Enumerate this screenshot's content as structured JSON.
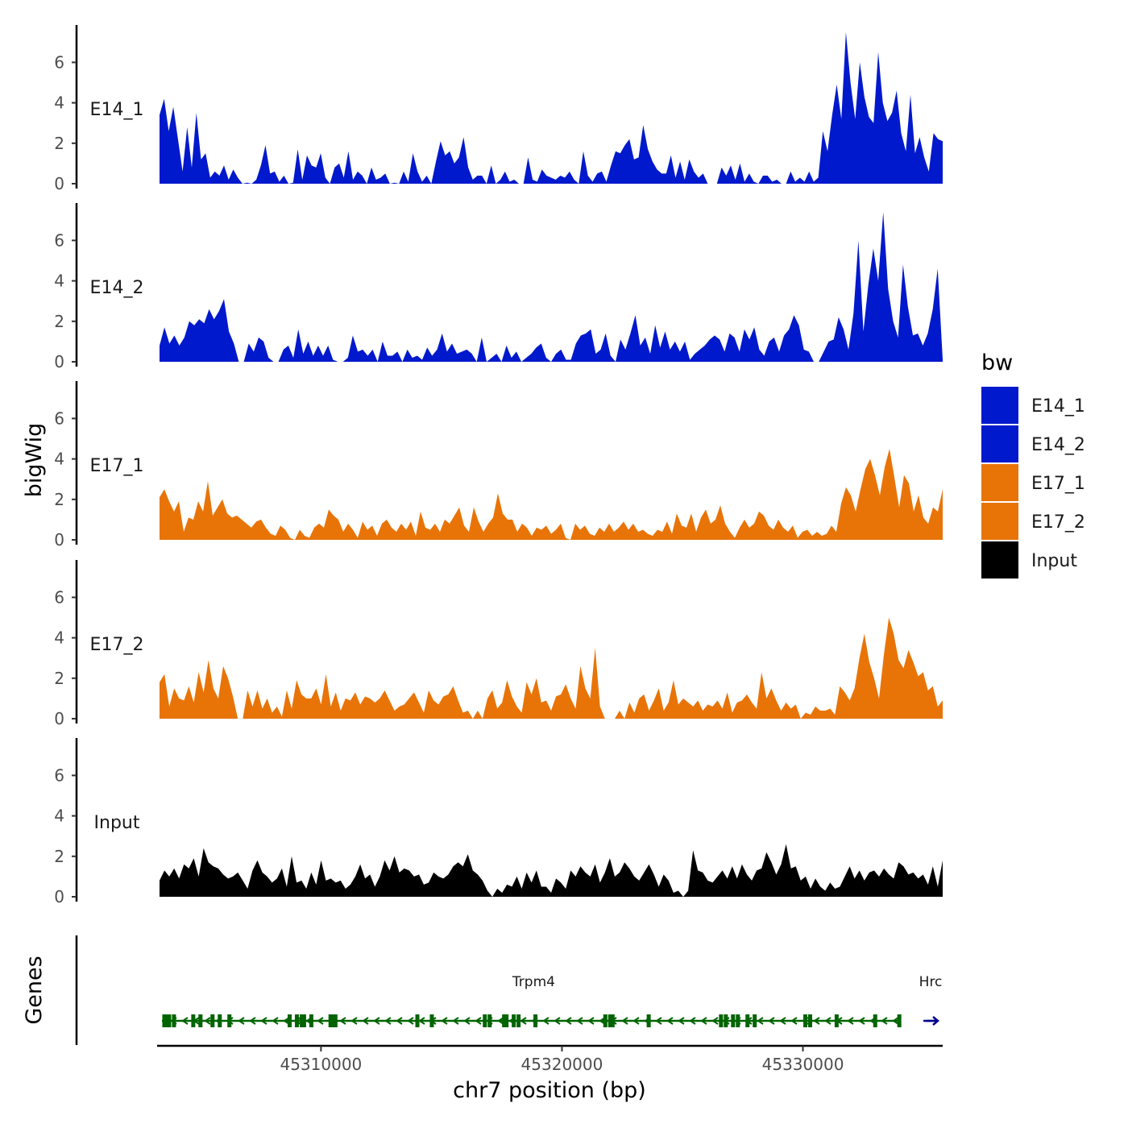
{
  "chart_data": {
    "type": "area",
    "title": "",
    "ylabel": "bigWig",
    "xlabel": "chr7 position (bp)",
    "genes_label": "Genes",
    "chromosome": "chr7",
    "xlim": [
      45303200,
      45335800
    ],
    "x_ticks": [
      45310000,
      45320000,
      45330000
    ],
    "x_tick_labels": [
      "45310000",
      "45320000",
      "45330000"
    ],
    "ylim": [
      0,
      7.5
    ],
    "y_ticks": [
      0,
      2,
      4,
      6
    ],
    "y_tick_labels": [
      "0",
      "2",
      "4",
      "6"
    ],
    "legend": {
      "title": "bw",
      "entries": [
        {
          "label": "E14_1",
          "color": "#0019CC"
        },
        {
          "label": "E14_2",
          "color": "#0019CC"
        },
        {
          "label": "E17_1",
          "color": "#E87408"
        },
        {
          "label": "E17_2",
          "color": "#E87408"
        },
        {
          "label": "Input",
          "color": "#000000"
        }
      ]
    },
    "tracks": [
      {
        "name": "E14_1",
        "color": "#0019CC",
        "x_start": 45303300,
        "x_end": 45335800,
        "values": [
          3.4,
          4.2,
          2.6,
          3.8,
          2.2,
          0.6,
          2.8,
          0.8,
          3.5,
          1.2,
          1.5,
          0.3,
          0.6,
          0.4,
          0.9,
          0.2,
          0.7,
          0.3,
          0,
          0.05,
          0,
          0.2,
          0.9,
          1.9,
          0.5,
          0.6,
          0.1,
          0.4,
          0,
          0.05,
          1.7,
          0.2,
          1.4,
          0.9,
          0.8,
          1.5,
          0.3,
          0,
          0.8,
          1.0,
          0.3,
          1.6,
          0.2,
          0.6,
          0.4,
          0,
          0.8,
          0.2,
          0.3,
          0.5,
          0,
          0.05,
          0,
          0.6,
          0.1,
          1.5,
          0.6,
          0.1,
          0.4,
          0,
          1.1,
          2.1,
          1.4,
          1.6,
          1.0,
          1.3,
          2.3,
          0.8,
          0.2,
          0.4,
          0.4,
          0,
          0.9,
          0,
          0.2,
          0.6,
          0.1,
          0.2,
          0,
          0,
          1.3,
          0.2,
          0.1,
          0.7,
          0.4,
          0.3,
          0.2,
          0.4,
          0.3,
          0.6,
          0.2,
          0,
          1.6,
          0.4,
          0.1,
          0.5,
          0.6,
          0.1,
          0.9,
          1.6,
          1.5,
          1.9,
          2.2,
          1.2,
          1.3,
          2.9,
          1.7,
          1.1,
          0.7,
          0.5,
          0.5,
          1.4,
          0.3,
          1.1,
          0.2,
          1.2,
          0.6,
          0.3,
          0.5,
          0,
          0,
          0,
          0.8,
          0.4,
          0.9,
          0.2,
          1.0,
          0.1,
          0.5,
          0.1,
          0,
          0.4,
          0.4,
          0.1,
          0.2,
          0,
          0,
          0.6,
          0.1,
          0.3,
          0.1,
          0.6,
          0.1,
          0.3,
          2.6,
          1.6,
          3.4,
          4.9,
          3.2,
          7.5,
          5.0,
          3.2,
          6.0,
          4.3,
          3.3,
          3.0,
          6.5,
          4.0,
          3.1,
          3.5,
          4.6,
          2.5,
          1.6,
          4.4,
          1.5,
          2.3,
          1.3,
          0.6,
          2.5,
          2.2,
          2.1
        ]
      },
      {
        "name": "E14_2",
        "color": "#0019CC",
        "x_start": 45303300,
        "x_end": 45335800,
        "values": [
          0.8,
          1.7,
          0.9,
          1.3,
          0.8,
          1.2,
          2.0,
          1.8,
          2.1,
          1.9,
          2.6,
          2.1,
          2.5,
          3.1,
          1.5,
          0.9,
          0,
          0,
          0.9,
          0.5,
          1.2,
          1.0,
          0.2,
          0,
          0,
          0.6,
          0.8,
          0.2,
          1.6,
          0.4,
          1.0,
          0.3,
          0.8,
          0.3,
          0.8,
          0.1,
          0,
          0,
          0.2,
          1.3,
          0.5,
          0.6,
          0.3,
          0.6,
          0,
          1.0,
          0.3,
          0.3,
          0.5,
          0,
          0.6,
          0.2,
          0.3,
          0.1,
          0.7,
          0.3,
          0.6,
          1.4,
          0.5,
          0.9,
          0.4,
          0.5,
          0.6,
          0.4,
          0,
          1.2,
          0,
          0.2,
          0.4,
          0,
          0.8,
          0.2,
          0.5,
          0,
          0.2,
          0.4,
          0.7,
          0.9,
          0.2,
          0,
          0.4,
          0.6,
          0.1,
          0.1,
          0.9,
          1.3,
          1.4,
          1.6,
          0.4,
          0.6,
          1.4,
          0.3,
          0,
          1.1,
          0.6,
          1.4,
          2.3,
          0.8,
          1.2,
          0.4,
          1.8,
          0.7,
          1.5,
          0.6,
          1.0,
          0.5,
          1.0,
          0.1,
          0.4,
          0.6,
          0.8,
          1.1,
          1.3,
          1.1,
          0.5,
          1.4,
          1.2,
          0.5,
          1.6,
          1.1,
          1.7,
          0.6,
          0.3,
          1.0,
          1.2,
          0.5,
          1.3,
          1.6,
          2.3,
          1.8,
          0.6,
          0.5,
          0,
          0,
          0.5,
          1.0,
          1.1,
          2.2,
          1.6,
          0.6,
          2.4,
          6.0,
          1.5,
          3.8,
          5.6,
          4.0,
          7.4,
          3.6,
          2.0,
          1.2,
          4.8,
          2.7,
          1.3,
          1.4,
          0.8,
          1.4,
          2.6,
          4.6,
          0.1
        ]
      },
      {
        "name": "E17_1",
        "color": "#E87408",
        "x_start": 45303300,
        "x_end": 45335800,
        "values": [
          2.1,
          2.5,
          1.9,
          1.4,
          1.9,
          0.4,
          1.1,
          1.0,
          1.9,
          1.4,
          2.9,
          1.2,
          1.6,
          2.0,
          1.3,
          1.1,
          1.2,
          1.0,
          0.8,
          0.6,
          0.9,
          1.0,
          0.6,
          0.3,
          0.2,
          0.7,
          0.5,
          0.1,
          0,
          0.5,
          0.2,
          0.1,
          0.6,
          0.8,
          0.6,
          1.5,
          1.2,
          1.0,
          0.4,
          0.8,
          0.5,
          0.1,
          0.9,
          0.5,
          0.7,
          0.2,
          0.8,
          1.0,
          0.6,
          0.4,
          0.8,
          0.5,
          0.9,
          0.2,
          1.4,
          0.6,
          0.5,
          0.8,
          0.4,
          1.0,
          0.8,
          1.2,
          1.6,
          0.7,
          0.4,
          1.6,
          0.9,
          0.4,
          0.8,
          1.1,
          2.3,
          1.3,
          1.0,
          1.0,
          0.4,
          0.8,
          0.6,
          0.2,
          0.6,
          0.5,
          0.7,
          0.3,
          0.5,
          0.8,
          0.1,
          0,
          0.8,
          0.5,
          0.7,
          0.3,
          0.2,
          0.6,
          0.4,
          0.8,
          0.4,
          0.6,
          0.9,
          0.5,
          0.8,
          0.4,
          0.5,
          0.3,
          0.2,
          0.5,
          0.4,
          0.9,
          0.3,
          1.3,
          0.7,
          0.6,
          1.3,
          0.4,
          1.1,
          1.5,
          0.8,
          1.0,
          1.7,
          0.8,
          0.4,
          0.1,
          0.6,
          1.0,
          0.6,
          0.8,
          1.4,
          1.2,
          0.7,
          0.5,
          1.0,
          0.6,
          0.4,
          0.7,
          0.1,
          0.4,
          0.5,
          0.2,
          0.4,
          0.2,
          0.3,
          0.7,
          0.4,
          1.8,
          2.6,
          2.2,
          1.4,
          2.5,
          3.5,
          4.0,
          3.2,
          2.2,
          3.6,
          4.5,
          3.1,
          1.6,
          3.2,
          2.8,
          1.4,
          2.2,
          1.1,
          0.8,
          1.6,
          1.4,
          2.5
        ]
      },
      {
        "name": "E17_2",
        "color": "#E87408",
        "x_start": 45303300,
        "x_end": 45335800,
        "values": [
          1.8,
          2.2,
          0.6,
          1.5,
          1.0,
          0.9,
          1.6,
          0.8,
          2.3,
          1.3,
          2.9,
          1.5,
          1.0,
          2.6,
          2.0,
          1.1,
          0,
          0,
          1.4,
          0.6,
          1.4,
          0.5,
          1.0,
          0.3,
          0.6,
          0.1,
          1.4,
          0.5,
          1.9,
          1.2,
          1.0,
          1.0,
          1.5,
          0.7,
          2.2,
          0.6,
          1.3,
          0.4,
          1.0,
          0.9,
          1.3,
          0.7,
          1.1,
          1.0,
          0.8,
          1.0,
          1.4,
          0.9,
          0.4,
          0.6,
          0.7,
          1.0,
          1.3,
          0.8,
          0.3,
          1.4,
          0.9,
          0.7,
          1.1,
          1.2,
          1.6,
          0.9,
          0.3,
          0.4,
          0,
          0.4,
          0,
          1.0,
          1.4,
          0.5,
          0.8,
          1.9,
          1.1,
          0.6,
          0.3,
          1.8,
          1.2,
          2.0,
          0.8,
          0.9,
          0.4,
          1.1,
          1.2,
          1.7,
          1.0,
          0.5,
          2.6,
          1.5,
          1.0,
          3.5,
          0.6,
          0,
          0,
          0,
          0.4,
          0,
          0.8,
          0.3,
          1.0,
          1.2,
          0.4,
          0.9,
          1.5,
          0.4,
          0.8,
          1.9,
          0.7,
          1.0,
          0.8,
          0.6,
          0.9,
          0.4,
          0.7,
          0.6,
          0.9,
          0.5,
          1.3,
          0.3,
          0.8,
          0.9,
          1.2,
          0.8,
          0.5,
          2.3,
          1.0,
          1.5,
          0.9,
          0.4,
          0.8,
          0.5,
          0.7,
          0,
          0.3,
          0.2,
          0.6,
          0.4,
          0.4,
          0.5,
          0.2,
          1.6,
          1.3,
          0.9,
          1.5,
          3.0,
          4.2,
          2.8,
          2.0,
          1.0,
          3.2,
          5.0,
          4.2,
          2.9,
          2.5,
          3.4,
          2.8,
          2.1,
          2.3,
          1.4,
          1.6,
          0.6,
          0.9
        ]
      },
      {
        "name": "Input",
        "color": "#000000",
        "x_start": 45303300,
        "x_end": 45335800,
        "values": [
          0.8,
          1.3,
          1.0,
          1.4,
          0.9,
          1.6,
          1.4,
          1.9,
          1.0,
          2.4,
          1.7,
          1.5,
          1.4,
          1.1,
          0.9,
          1.0,
          1.2,
          0.8,
          0.4,
          1.3,
          1.8,
          1.2,
          1.0,
          0.7,
          0.9,
          1.4,
          0.5,
          2.0,
          0.7,
          0.8,
          0.4,
          1.2,
          0.6,
          1.8,
          0.8,
          0.9,
          0.7,
          0.8,
          0.4,
          0.6,
          1.0,
          1.6,
          0.9,
          1.1,
          0.5,
          1.0,
          1.8,
          1.3,
          2.0,
          1.2,
          1.4,
          1.3,
          1.0,
          1.1,
          0.6,
          0.7,
          1.2,
          1.0,
          0.9,
          1.1,
          1.5,
          1.7,
          1.5,
          2.1,
          1.3,
          1.1,
          0.8,
          0.3,
          0,
          0.4,
          0.2,
          0.6,
          0.5,
          1.0,
          0.4,
          1.2,
          0.7,
          1.3,
          0.5,
          0.5,
          0.2,
          0.9,
          0.7,
          0.4,
          1.3,
          1.0,
          1.5,
          1.2,
          1.0,
          1.6,
          0.7,
          1.2,
          1.9,
          1.0,
          1.2,
          1.7,
          1.4,
          1.0,
          0.8,
          1.2,
          1.6,
          1.1,
          0.5,
          1.1,
          0.8,
          0.2,
          0.3,
          0,
          0.3,
          2.3,
          1.3,
          1.2,
          0.8,
          0.7,
          1.0,
          1.3,
          0.9,
          1.5,
          0.9,
          1.6,
          1.1,
          0.8,
          1.3,
          1.4,
          2.2,
          1.7,
          1.1,
          1.6,
          2.6,
          1.4,
          1.5,
          0.8,
          1.0,
          0.4,
          0.9,
          0.5,
          0.3,
          0.7,
          0.4,
          0.5,
          1.0,
          1.5,
          0.9,
          1.3,
          0.8,
          1.2,
          1.3,
          1.0,
          1.4,
          1.1,
          0.9,
          1.7,
          1.5,
          1.1,
          1.2,
          0.9,
          1.1,
          0.6,
          1.5,
          0.5,
          1.8
        ]
      }
    ],
    "genes": [
      {
        "name": "Trpm4",
        "start": 45303400,
        "end": 45334000,
        "strand": "-",
        "color": "#006400",
        "exons": [
          45303600,
          45303900,
          45304700,
          45305000,
          45305500,
          45305800,
          45306200,
          45308700,
          45309000,
          45309200,
          45309300,
          45309600,
          45310400,
          45310500,
          45314000,
          45314600,
          45316800,
          45317000,
          45317600,
          45317700,
          45318000,
          45318200,
          45318900,
          45321800,
          45322000,
          45322100,
          45323600,
          45326600,
          45326800,
          45327100,
          45327300,
          45327700,
          45328000,
          45330100,
          45330300,
          45331400,
          45333000,
          45334000
        ]
      },
      {
        "name": "Hrc",
        "start": 45335000,
        "end": 45335600,
        "strand": "+",
        "color": "#00008B",
        "exons": []
      }
    ]
  }
}
